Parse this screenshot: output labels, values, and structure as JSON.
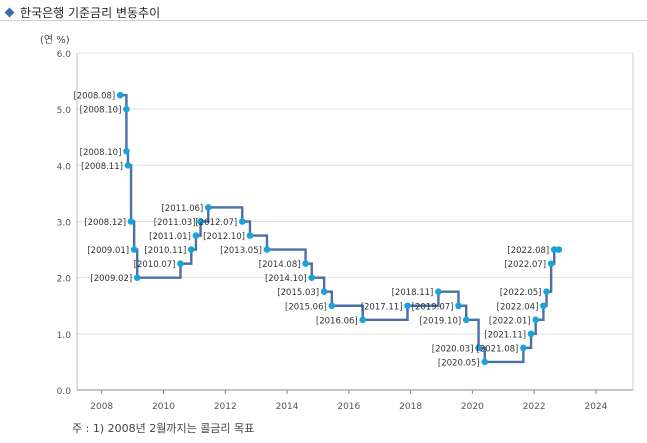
{
  "page": {
    "title": "한국은행 기준금리 변동추이",
    "footnote": "주 : 1) 2008년 2월까지는 콜금리 목표"
  },
  "chart_data": {
    "type": "line",
    "step": true,
    "title": "",
    "unit_label": "(연 %)",
    "xlabel": "",
    "ylabel": "",
    "xlim": [
      2007.2,
      2025.2
    ],
    "ylim": [
      0,
      6
    ],
    "x_ticks": [
      2008,
      2010,
      2012,
      2014,
      2016,
      2018,
      2020,
      2022,
      2024
    ],
    "y_ticks": [
      "0.0",
      "1.0",
      "2.0",
      "3.0",
      "4.0",
      "5.0",
      "6.0"
    ],
    "grid": "horizontal",
    "colors": {
      "line": "#4a6fa5",
      "marker": "#1aa3d9",
      "grid": "#e3e3e3",
      "frame": "#999999"
    },
    "series": [
      {
        "points": [
          {
            "x": 2008.6,
            "y": 5.25,
            "label": "[2008.08]"
          },
          {
            "x": 2008.8,
            "y": 5.0,
            "label": "[2008.10]"
          },
          {
            "x": 2008.8,
            "y": 4.25,
            "label": "[2008.10]"
          },
          {
            "x": 2008.85,
            "y": 4.0,
            "label": "[2008.11]"
          },
          {
            "x": 2008.95,
            "y": 3.0,
            "label": "[2008.12]"
          },
          {
            "x": 2009.05,
            "y": 2.5,
            "label": "[2009.01]"
          },
          {
            "x": 2009.15,
            "y": 2.0,
            "label": "[2009.02]"
          },
          {
            "x": 2010.55,
            "y": 2.25,
            "label": "[2010.07]"
          },
          {
            "x": 2010.9,
            "y": 2.5,
            "label": "[2010.11]"
          },
          {
            "x": 2011.05,
            "y": 2.75,
            "label": "[2011.01]"
          },
          {
            "x": 2011.2,
            "y": 3.0,
            "label": "[2011.03]"
          },
          {
            "x": 2011.45,
            "y": 3.25,
            "label": "[2011.06]"
          },
          {
            "x": 2012.55,
            "y": 3.0,
            "label": "[2012.07]"
          },
          {
            "x": 2012.8,
            "y": 2.75,
            "label": "[2012.10]"
          },
          {
            "x": 2013.35,
            "y": 2.5,
            "label": "[2013.05]"
          },
          {
            "x": 2014.6,
            "y": 2.25,
            "label": "[2014.08]"
          },
          {
            "x": 2014.8,
            "y": 2.0,
            "label": "[2014.10]"
          },
          {
            "x": 2015.2,
            "y": 1.75,
            "label": "[2015.03]"
          },
          {
            "x": 2015.45,
            "y": 1.5,
            "label": "[2015.06]"
          },
          {
            "x": 2016.45,
            "y": 1.25,
            "label": "[2016.06]"
          },
          {
            "x": 2017.9,
            "y": 1.5,
            "label": "[2017.11]"
          },
          {
            "x": 2018.9,
            "y": 1.75,
            "label": "[2018.11]"
          },
          {
            "x": 2019.55,
            "y": 1.5,
            "label": "[2019.07]"
          },
          {
            "x": 2019.8,
            "y": 1.25,
            "label": "[2019.10]"
          },
          {
            "x": 2020.2,
            "y": 0.75,
            "label": "[2020.03]"
          },
          {
            "x": 2020.4,
            "y": 0.5,
            "label": "[2020.05]"
          },
          {
            "x": 2021.65,
            "y": 0.75,
            "label": "[2021.08]"
          },
          {
            "x": 2021.9,
            "y": 1.0,
            "label": "[2021.11]"
          },
          {
            "x": 2022.05,
            "y": 1.25,
            "label": "[2022.01]"
          },
          {
            "x": 2022.3,
            "y": 1.5,
            "label": "[2022.04]"
          },
          {
            "x": 2022.4,
            "y": 1.75,
            "label": "[2022.05]"
          },
          {
            "x": 2022.55,
            "y": 2.25,
            "label": "[2022.07]"
          },
          {
            "x": 2022.65,
            "y": 2.5,
            "label": "[2022.08]"
          },
          {
            "x": 2022.8,
            "y": 2.5,
            "label": ""
          }
        ]
      }
    ]
  }
}
